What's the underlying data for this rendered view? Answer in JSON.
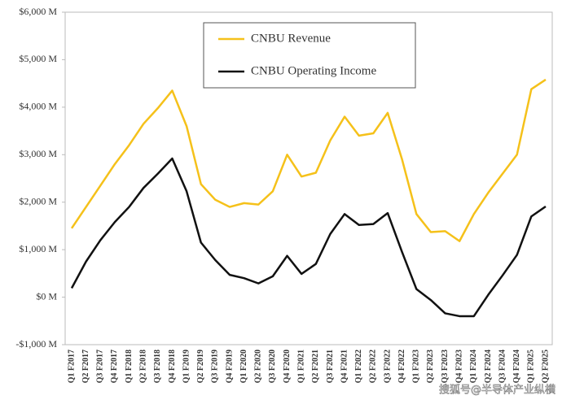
{
  "chart_data": {
    "type": "line",
    "categories": [
      "Q1 F2017",
      "Q2 F2017",
      "Q3 F2017",
      "Q4 F2017",
      "Q1 F2018",
      "Q2 F2018",
      "Q3 F2018",
      "Q4 F2018",
      "Q1 F2019",
      "Q2 F2019",
      "Q3 F2019",
      "Q4 F2019",
      "Q1 F2020",
      "Q2 F2020",
      "Q3 F2020",
      "Q4 F2020",
      "Q1 F2021",
      "Q2 F2021",
      "Q3 F2021",
      "Q4 F2021",
      "Q1 F2022",
      "Q2 F2022",
      "Q3 F2022",
      "Q4 F2022",
      "Q1 F2023",
      "Q2 F2023",
      "Q3 F2023",
      "Q4 F2023",
      "Q1 F2024",
      "Q2 F2024",
      "Q3 F2024",
      "Q4 F2024",
      "Q1 F2025",
      "Q2 F2025"
    ],
    "series": [
      {
        "name": "CNBU Revenue",
        "color": "#f5c11a",
        "values": [
          1450,
          1900,
          2350,
          2800,
          3200,
          3650,
          3980,
          4350,
          3600,
          2380,
          2050,
          1900,
          1980,
          1950,
          2230,
          3000,
          2540,
          2620,
          3300,
          3800,
          3400,
          3450,
          3880,
          2900,
          1750,
          1370,
          1390,
          1180,
          1750,
          2200,
          2600,
          3000,
          4380,
          4580
        ]
      },
      {
        "name": "CNBU Operating Income",
        "color": "#111111",
        "values": [
          190,
          750,
          1200,
          1580,
          1900,
          2300,
          2600,
          2920,
          2230,
          1150,
          780,
          470,
          400,
          290,
          440,
          870,
          490,
          700,
          1330,
          1750,
          1520,
          1540,
          1770,
          950,
          170,
          -60,
          -340,
          -400,
          -400,
          50,
          460,
          890,
          1700,
          1910
        ]
      }
    ],
    "ylim": [
      -1000,
      6000
    ],
    "yticks": [
      {
        "value": -1000,
        "label": "-$1,000 M"
      },
      {
        "value": 0,
        "label": "$0 M"
      },
      {
        "value": 1000,
        "label": "$1,000 M"
      },
      {
        "value": 2000,
        "label": "$2,000 M"
      },
      {
        "value": 3000,
        "label": "$3,000 M"
      },
      {
        "value": 4000,
        "label": "$4,000 M"
      },
      {
        "value": 5000,
        "label": "$5,000 M"
      },
      {
        "value": 6000,
        "label": "$6,000 M"
      }
    ],
    "legend": "top-center",
    "watermark": "搜狐号@半导体产业纵横"
  }
}
